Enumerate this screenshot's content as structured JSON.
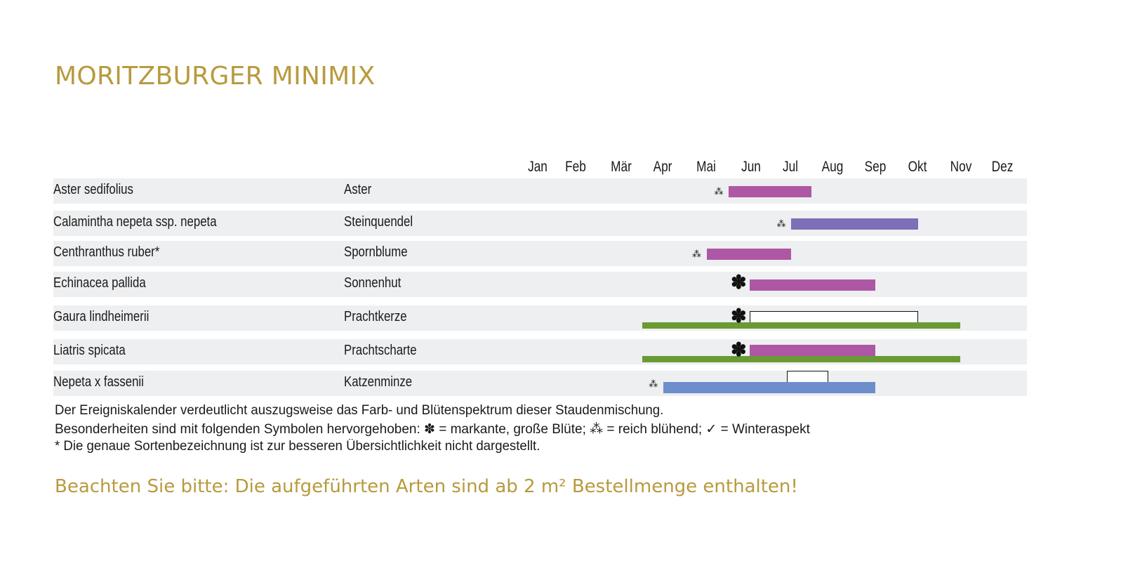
{
  "title": "MORITZBURGER MINIMIX",
  "chart_data": {
    "type": "table",
    "months": [
      "Jan",
      "Feb",
      "Mär",
      "Apr",
      "Mai",
      "Jun",
      "Jul",
      "Aug",
      "Sep",
      "Okt",
      "Nov",
      "Dez"
    ],
    "rows": [
      {
        "latin": "Aster sedifolius",
        "common": "Aster",
        "symbol": "rich",
        "bars": [
          {
            "start": 6.0,
            "end": 8.0,
            "color": "#ae57a4",
            "style": "bloom"
          }
        ]
      },
      {
        "latin": "Calamintha nepeta ssp. nepeta",
        "common": "Steinquendel",
        "symbol": "rich",
        "bars": [
          {
            "start": 7.5,
            "end": 10.5,
            "color": "#7e6fb6",
            "style": "bloom"
          }
        ]
      },
      {
        "latin": "Centhranthus ruber*",
        "common": "Spornblume",
        "symbol": "rich",
        "bars": [
          {
            "start": 5.5,
            "end": 7.5,
            "color": "#ae57a4",
            "style": "bloom"
          }
        ]
      },
      {
        "latin": "Echinacea pallida",
        "common": "Sonnenhut",
        "symbol": "big",
        "bars": [
          {
            "start": 6.5,
            "end": 9.5,
            "color": "#ae57a4",
            "style": "bloom"
          }
        ]
      },
      {
        "latin": "Gaura lindheimerii",
        "common": "Prachtkerze",
        "symbol": "big",
        "bars": [
          {
            "start": 6.5,
            "end": 10.5,
            "color": "#ffffff",
            "style": "outline"
          },
          {
            "start": 4.0,
            "end": 11.5,
            "color": "#6a9a34",
            "style": "leaf"
          }
        ]
      },
      {
        "latin": "Liatris spicata",
        "common": "Prachtscharte",
        "symbol": "big",
        "bars": [
          {
            "start": 6.5,
            "end": 9.5,
            "color": "#ae57a4",
            "style": "bloom"
          },
          {
            "start": 4.0,
            "end": 11.5,
            "color": "#6a9a34",
            "style": "leaf"
          }
        ]
      },
      {
        "latin": "Nepeta x fassenii",
        "common": "Katzenminze",
        "symbol": "rich",
        "bars": [
          {
            "start": 7.4,
            "end": 8.4,
            "color": "#ffffff",
            "style": "outline-top"
          },
          {
            "start": 4.5,
            "end": 9.5,
            "color": "#6c8fcb",
            "style": "bloom"
          }
        ]
      }
    ]
  },
  "symbols": {
    "big": "✽",
    "rich": "⁂"
  },
  "notes": {
    "line1": "Der Ereigniskalender verdeutlicht auszugsweise das Farb- und Blütenspektrum dieser Staudenmischung.",
    "line2": "Besonderheiten sind mit folgenden Symbolen hervorgehoben: ✽ = markante, große Blüte; ⁂ = reich blühend; ✓ = Winteraspekt",
    "line3": "* Die genaue Sortenbezeichnung ist zur besseren Übersichtlichkeit nicht dargestellt."
  },
  "notice": "Beachten Sie bitte: Die aufgeführten Arten sind ab 2 m² Bestellmenge enthalten!"
}
